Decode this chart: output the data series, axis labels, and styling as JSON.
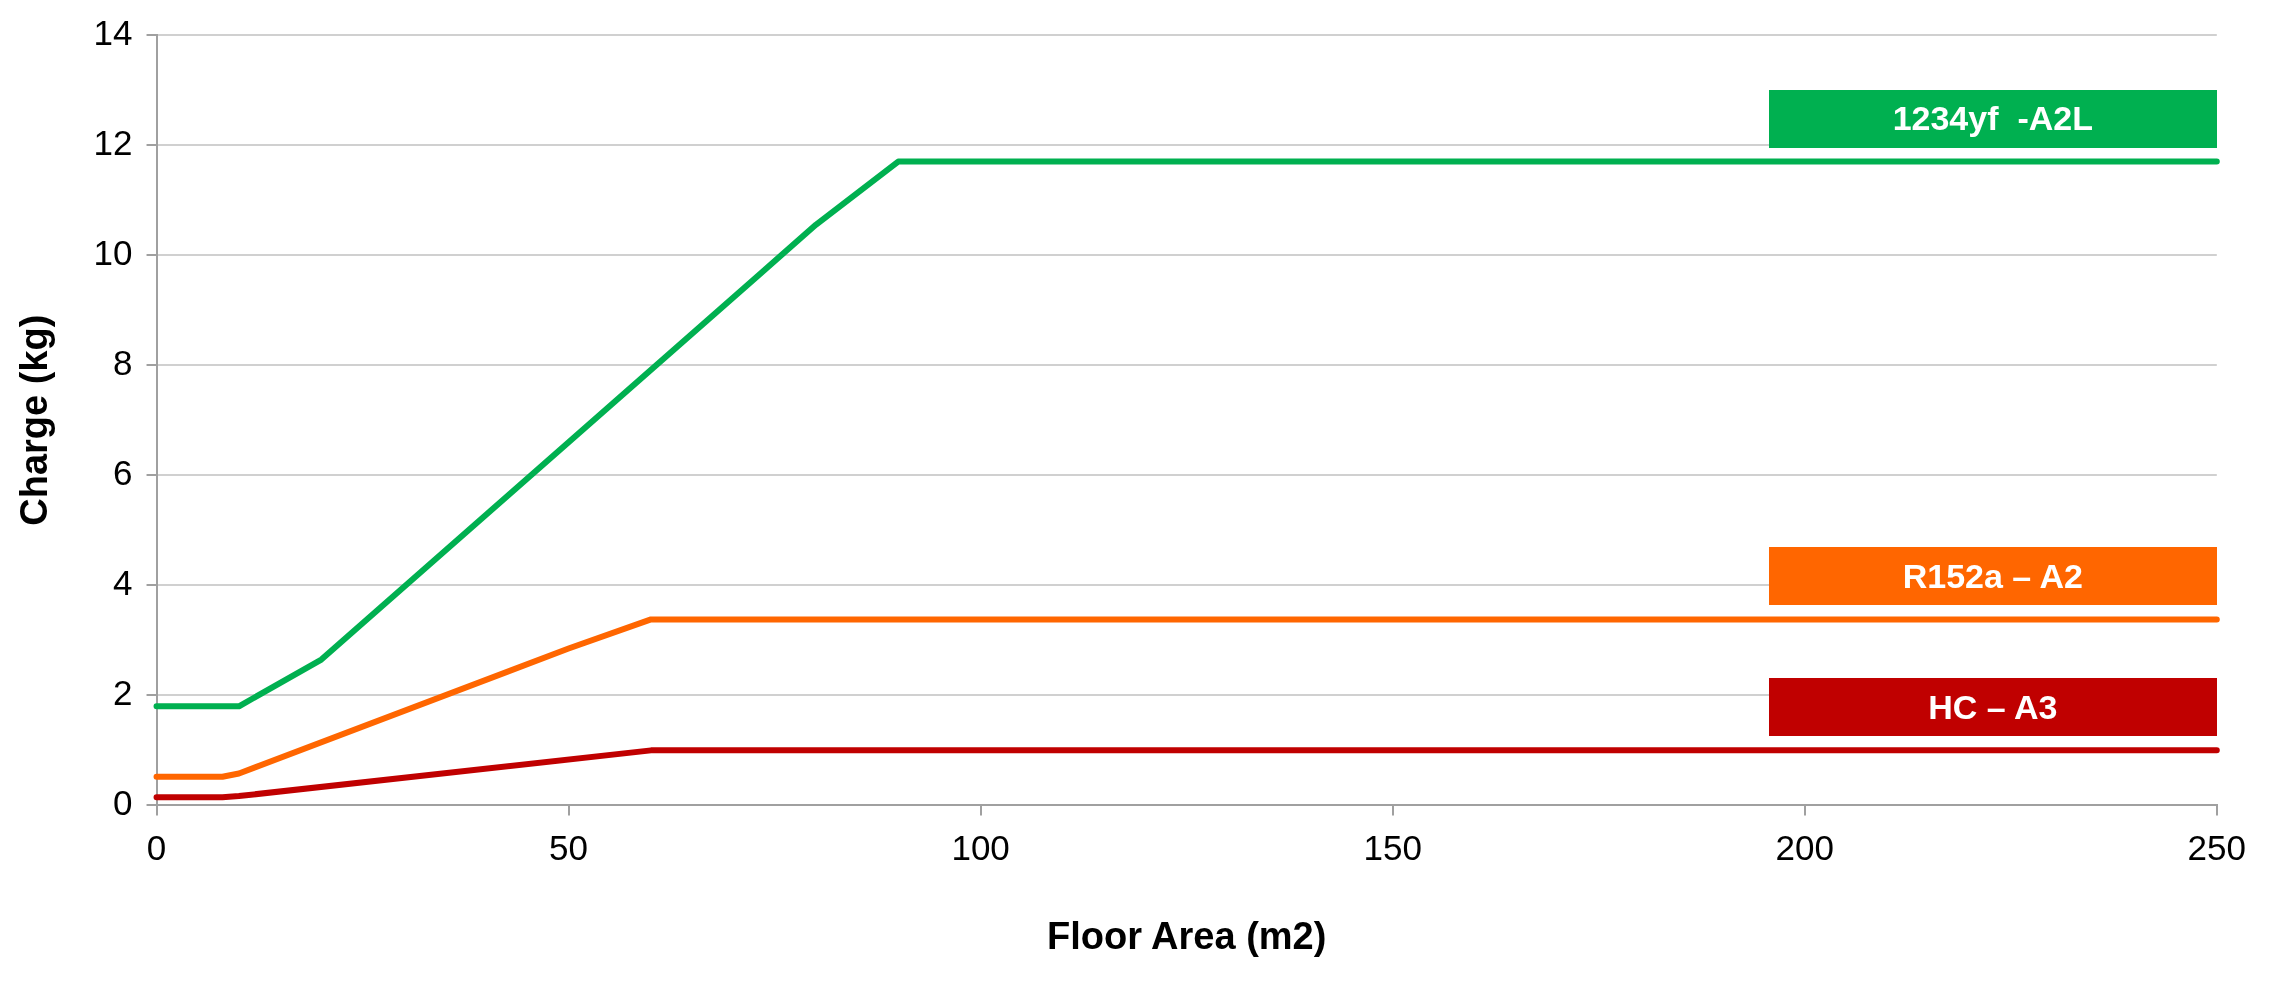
{
  "chart_data": {
    "type": "line",
    "xlabel": "Floor Area (m2)",
    "ylabel": "Charge (kg)",
    "xlim": [
      0,
      250
    ],
    "xticks": [
      0,
      50,
      100,
      150,
      200,
      250
    ],
    "ylim": [
      0,
      14
    ],
    "yticks": [
      0,
      2,
      4,
      6,
      8,
      10,
      12,
      14
    ],
    "grid": "y",
    "legend": "right",
    "marker": "none",
    "line_style": "solid",
    "series": [
      {
        "name": "1234yf  -A2L",
        "color": "#00b050",
        "x": [
          0,
          10,
          20,
          80,
          90,
          250
        ],
        "values": [
          1.8,
          1.8,
          2.65,
          10.55,
          11.7,
          11.7
        ]
      },
      {
        "name": "R152a – A2",
        "color": "#ff6600",
        "x": [
          0,
          8,
          10,
          50,
          60,
          250
        ],
        "values": [
          0.52,
          0.52,
          0.58,
          2.85,
          3.38,
          3.38
        ]
      },
      {
        "name": "HC – A3",
        "color": "#c00000",
        "x": [
          0,
          8,
          10,
          60,
          250
        ],
        "values": [
          0.15,
          0.15,
          0.17,
          1.0,
          1.0
        ]
      }
    ]
  }
}
